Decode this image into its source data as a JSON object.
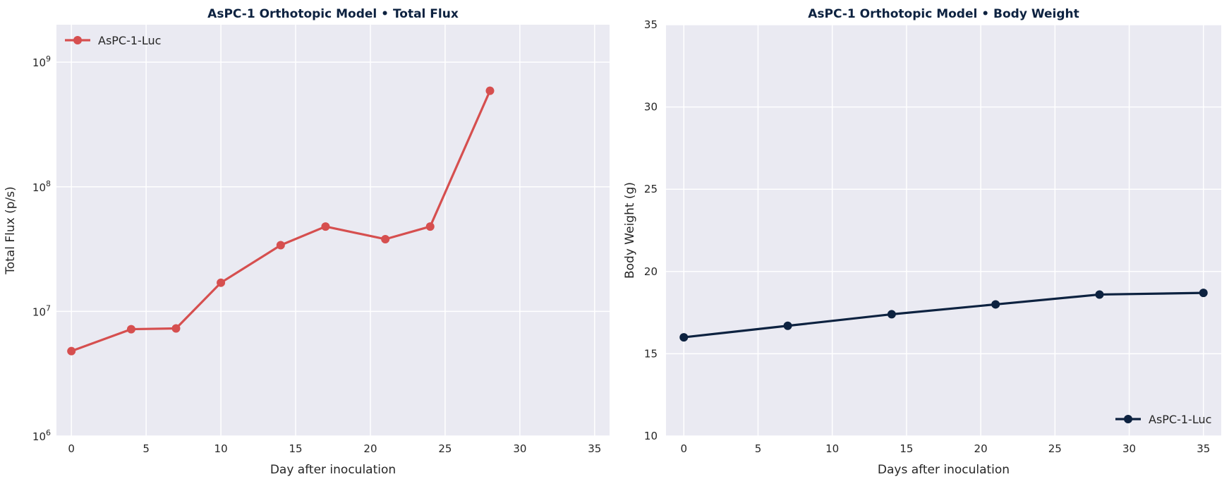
{
  "chart_data": [
    {
      "type": "line",
      "title": "AsPC-1 Orthotopic Model  •  Total Flux",
      "xlabel": "Day after inoculation",
      "ylabel": "Total Flux (p/s)",
      "xlim": [
        -1,
        36
      ],
      "ylim": [
        1000000,
        2000000000
      ],
      "yscale": "log",
      "xticks": [
        0,
        5,
        10,
        15,
        20,
        25,
        30,
        35
      ],
      "yticks": [
        {
          "value": 1000000,
          "base": "10",
          "exp": "6"
        },
        {
          "value": 10000000,
          "base": "10",
          "exp": "7"
        },
        {
          "value": 100000000,
          "base": "10",
          "exp": "8"
        },
        {
          "value": 1000000000,
          "base": "10",
          "exp": "9"
        }
      ],
      "grid": true,
      "legend_position": "upper-left",
      "series": [
        {
          "name": "AsPC-1-Luc",
          "color": "#d64f4f",
          "x": [
            0,
            4,
            7,
            10,
            14,
            17,
            21,
            24,
            28
          ],
          "y": [
            4800000,
            7200000,
            7300000,
            17000000,
            34000000,
            48000000,
            38000000,
            48000000,
            590000000
          ]
        }
      ]
    },
    {
      "type": "line",
      "title": "AsPC-1 Orthotopic Model  •  Body Weight",
      "xlabel": "Days after inoculation",
      "ylabel": "Body Weight (g)",
      "xlim": [
        -1.2,
        36.2
      ],
      "ylim": [
        10,
        35
      ],
      "yscale": "linear",
      "xticks": [
        0,
        5,
        10,
        15,
        20,
        25,
        30,
        35
      ],
      "yticks": [
        10,
        15,
        20,
        25,
        30,
        35
      ],
      "grid": true,
      "legend_position": "lower-right",
      "series": [
        {
          "name": "AsPC-1-Luc",
          "color": "#0d2240",
          "x": [
            0,
            7,
            14,
            21,
            28,
            35
          ],
          "y": [
            16.0,
            16.7,
            17.4,
            18.0,
            18.6,
            18.7
          ]
        }
      ]
    }
  ]
}
